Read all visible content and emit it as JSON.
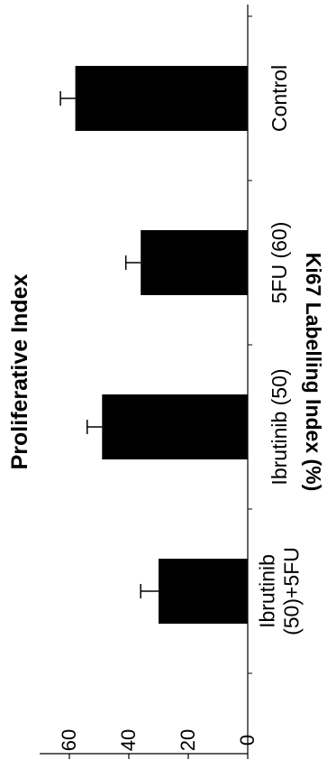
{
  "chart_data": {
    "type": "bar",
    "title": "Proliferative Index",
    "ylabel": "Ki67 Labelling Index (%)",
    "xlabel": "",
    "categories": [
      "Control",
      "5FU (60)",
      "Ibrutinib (50)",
      "Ibrutinib (50)+5FU"
    ],
    "category_lines": [
      [
        "Control"
      ],
      [
        "5FU (60)"
      ],
      [
        "Ibrutinib (50)"
      ],
      [
        "Ibrutinib",
        "(50)+5FU"
      ]
    ],
    "values": [
      58,
      36,
      49,
      30
    ],
    "errors": [
      5,
      5,
      5,
      6
    ],
    "ylim": [
      0,
      70
    ],
    "yticks": [
      0,
      20,
      40,
      60
    ],
    "orientation": "rotated-90-ccw",
    "grid": false,
    "bar_color": "#000000"
  }
}
